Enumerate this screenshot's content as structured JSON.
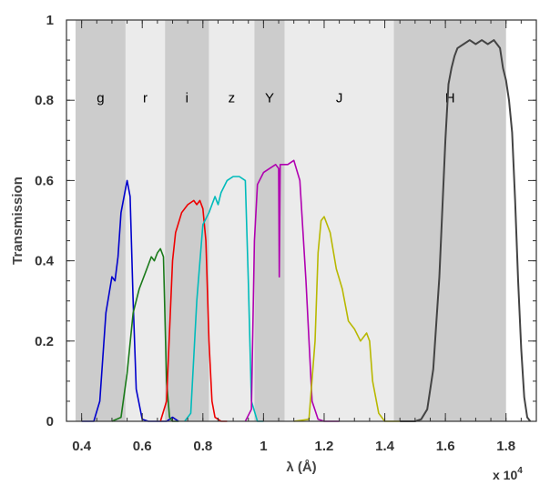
{
  "chart_data": {
    "type": "line",
    "xlabel": "λ (Å)",
    "ylabel": "Transmission",
    "x_multiplier": {
      "base": "x 10",
      "exponent": "4"
    },
    "xlim": [
      0.35,
      1.9
    ],
    "ylim": [
      0,
      1
    ],
    "x_ticks": [
      "0.4",
      "0.6",
      "0.8",
      "1",
      "1.2",
      "1.4",
      "1.6",
      "1.8"
    ],
    "y_ticks": [
      "0",
      "0.2",
      "0.4",
      "0.6",
      "0.8",
      "1"
    ],
    "grid": false,
    "bands": [
      {
        "name": "g",
        "x0": 0.38,
        "x1": 0.545,
        "shade": "#cccccc"
      },
      {
        "name": "r",
        "x0": 0.545,
        "x1": 0.675,
        "shade": "#ebebeb"
      },
      {
        "name": "i",
        "x0": 0.675,
        "x1": 0.82,
        "shade": "#cccccc"
      },
      {
        "name": "z",
        "x0": 0.82,
        "x1": 0.97,
        "shade": "#ebebeb"
      },
      {
        "name": "Y",
        "x0": 0.97,
        "x1": 1.07,
        "shade": "#cccccc"
      },
      {
        "name": "J",
        "x0": 1.07,
        "x1": 1.43,
        "shade": "#ebebeb"
      },
      {
        "name": "H",
        "x0": 1.43,
        "x1": 1.8,
        "shade": "#cccccc"
      }
    ],
    "series": [
      {
        "color": "#0000cc",
        "x": [
          0.4,
          0.44,
          0.46,
          0.48,
          0.5,
          0.51,
          0.52,
          0.53,
          0.545,
          0.55,
          0.56,
          0.57,
          0.58,
          0.6,
          0.62,
          0.65,
          0.68,
          0.69,
          0.7,
          0.71,
          0.72
        ],
        "y": [
          0,
          0,
          0.05,
          0.27,
          0.36,
          0.35,
          0.41,
          0.52,
          0.58,
          0.6,
          0.56,
          0.3,
          0.08,
          0.005,
          0,
          0,
          0,
          0.005,
          0.01,
          0.005,
          0
        ]
      },
      {
        "color": "#1a7a1a",
        "x": [
          0.5,
          0.53,
          0.55,
          0.57,
          0.59,
          0.61,
          0.62,
          0.63,
          0.64,
          0.65,
          0.66,
          0.67,
          0.68,
          0.69,
          0.7,
          0.72
        ],
        "y": [
          0,
          0.01,
          0.12,
          0.27,
          0.33,
          0.37,
          0.39,
          0.41,
          0.4,
          0.42,
          0.43,
          0.41,
          0.1,
          0.01,
          0,
          0
        ]
      },
      {
        "color": "#ee0000",
        "x": [
          0.66,
          0.68,
          0.7,
          0.71,
          0.73,
          0.75,
          0.77,
          0.78,
          0.79,
          0.8,
          0.81,
          0.82,
          0.83,
          0.84,
          0.86,
          0.88
        ],
        "y": [
          0,
          0.05,
          0.4,
          0.47,
          0.52,
          0.54,
          0.55,
          0.54,
          0.55,
          0.53,
          0.45,
          0.2,
          0.05,
          0.01,
          0,
          0
        ]
      },
      {
        "color": "#00bbbb",
        "x": [
          0.74,
          0.76,
          0.78,
          0.8,
          0.82,
          0.84,
          0.85,
          0.86,
          0.88,
          0.9,
          0.92,
          0.94,
          0.95,
          0.96,
          0.98,
          1.0
        ],
        "y": [
          0,
          0.02,
          0.3,
          0.49,
          0.52,
          0.56,
          0.54,
          0.57,
          0.6,
          0.61,
          0.61,
          0.6,
          0.35,
          0.05,
          0,
          0
        ]
      },
      {
        "color": "#b000b0",
        "x": [
          0.94,
          0.96,
          0.97,
          0.98,
          1.0,
          1.02,
          1.04,
          1.05,
          1.052,
          1.055,
          1.06,
          1.08,
          1.1,
          1.12,
          1.14,
          1.16,
          1.18,
          1.2,
          1.25
        ],
        "y": [
          0,
          0.03,
          0.45,
          0.59,
          0.62,
          0.63,
          0.64,
          0.63,
          0.36,
          0.64,
          0.64,
          0.64,
          0.65,
          0.6,
          0.35,
          0.05,
          0.005,
          0,
          0
        ]
      },
      {
        "color": "#b8b800",
        "x": [
          1.1,
          1.15,
          1.17,
          1.18,
          1.19,
          1.2,
          1.22,
          1.24,
          1.26,
          1.28,
          1.3,
          1.32,
          1.34,
          1.35,
          1.36,
          1.38,
          1.4,
          1.45
        ],
        "y": [
          0,
          0.005,
          0.2,
          0.42,
          0.5,
          0.51,
          0.47,
          0.38,
          0.33,
          0.25,
          0.23,
          0.2,
          0.22,
          0.2,
          0.1,
          0.02,
          0,
          0
        ]
      },
      {
        "color": "#444444",
        "x": [
          1.45,
          1.5,
          1.52,
          1.54,
          1.56,
          1.58,
          1.6,
          1.61,
          1.62,
          1.63,
          1.64,
          1.66,
          1.68,
          1.7,
          1.72,
          1.74,
          1.76,
          1.78,
          1.79,
          1.8,
          1.81,
          1.82,
          1.83,
          1.84,
          1.85,
          1.86,
          1.87,
          1.88
        ],
        "y": [
          0,
          0,
          0.005,
          0.03,
          0.13,
          0.36,
          0.7,
          0.84,
          0.88,
          0.91,
          0.93,
          0.94,
          0.95,
          0.94,
          0.95,
          0.94,
          0.95,
          0.93,
          0.88,
          0.85,
          0.8,
          0.72,
          0.55,
          0.35,
          0.18,
          0.06,
          0.01,
          0
        ]
      }
    ]
  }
}
